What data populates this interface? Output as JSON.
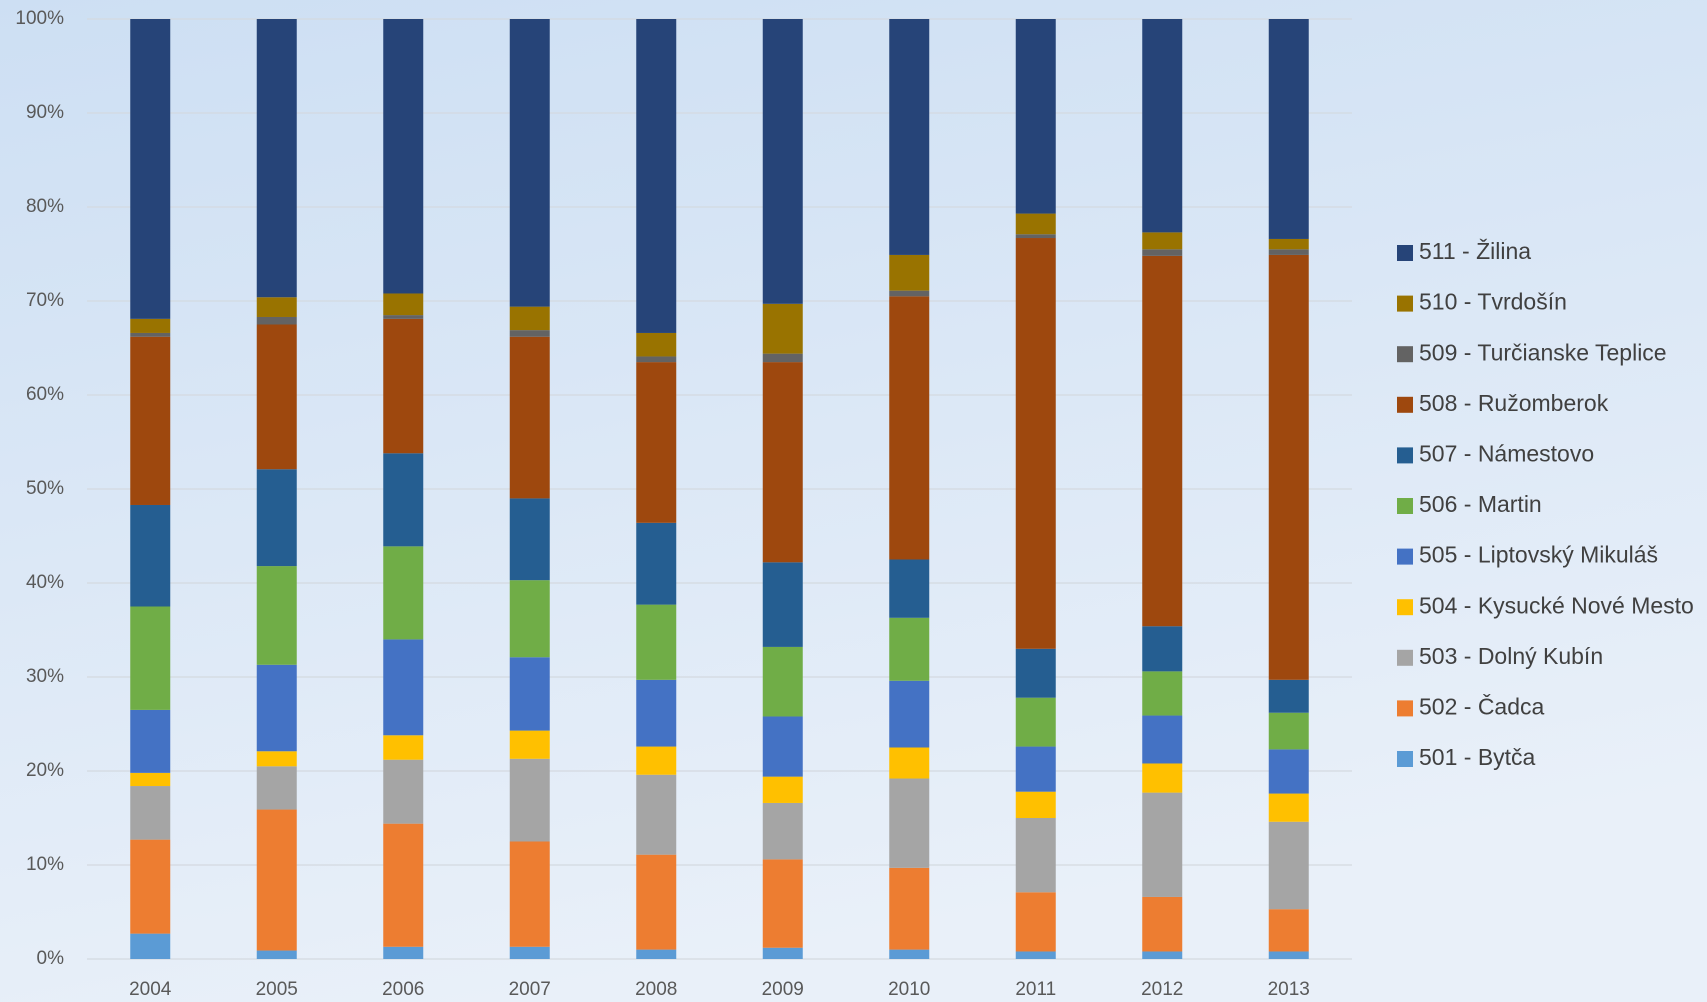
{
  "chart_data": {
    "type": "bar",
    "stacked": true,
    "categories": [
      "2004",
      "2005",
      "2006",
      "2007",
      "2008",
      "2009",
      "2010",
      "2011",
      "2012",
      "2013"
    ],
    "series": [
      {
        "name": "501 - Bytča",
        "color": "#5b9bd5",
        "values": [
          2.7,
          0.9,
          1.3,
          1.3,
          1.0,
          1.2,
          1.0,
          0.8,
          0.8,
          0.8
        ]
      },
      {
        "name": "502 - Čadca",
        "color": "#ed7d31",
        "values": [
          10.0,
          15.0,
          13.1,
          11.2,
          10.1,
          9.4,
          8.7,
          6.3,
          5.8,
          4.5
        ]
      },
      {
        "name": "503 - Dolný Kubín",
        "color": "#a5a5a5",
        "values": [
          5.7,
          4.6,
          6.8,
          8.8,
          8.5,
          6.0,
          9.5,
          7.9,
          11.1,
          9.3
        ]
      },
      {
        "name": "504 - Kysucké Nové Mesto",
        "color": "#ffc000",
        "values": [
          1.4,
          1.6,
          2.6,
          3.0,
          3.0,
          2.8,
          3.3,
          2.8,
          3.1,
          3.0
        ]
      },
      {
        "name": "505 - Liptovský Mikuláš",
        "color": "#4472c4",
        "values": [
          6.7,
          9.2,
          10.2,
          7.8,
          7.1,
          6.4,
          7.1,
          4.8,
          5.1,
          4.7
        ]
      },
      {
        "name": "506 - Martin",
        "color": "#70ad47",
        "values": [
          11.0,
          10.5,
          9.9,
          8.2,
          8.0,
          7.4,
          6.7,
          5.2,
          4.7,
          3.9
        ]
      },
      {
        "name": "507 - Námestovo",
        "color": "#255e91",
        "values": [
          10.8,
          10.3,
          9.9,
          8.7,
          8.7,
          9.0,
          6.2,
          5.2,
          4.8,
          3.5
        ]
      },
      {
        "name": "508 - Ružomberok",
        "color": "#9e480e",
        "values": [
          17.9,
          15.4,
          14.3,
          17.2,
          17.1,
          21.3,
          28.0,
          43.7,
          39.4,
          45.2
        ]
      },
      {
        "name": "509 - Turčianske Teplice",
        "color": "#636363",
        "values": [
          0.4,
          0.8,
          0.4,
          0.7,
          0.6,
          0.9,
          0.6,
          0.4,
          0.7,
          0.6
        ]
      },
      {
        "name": "510 - Tvrdošín",
        "color": "#997300",
        "values": [
          1.5,
          2.1,
          2.3,
          2.5,
          2.5,
          5.3,
          3.8,
          2.2,
          1.8,
          1.1
        ]
      },
      {
        "name": "511 - Žilina",
        "color": "#264478",
        "values": [
          31.9,
          29.6,
          29.2,
          30.6,
          33.4,
          30.3,
          25.1,
          20.7,
          22.7,
          23.4
        ]
      }
    ],
    "ylim": [
      0,
      100
    ],
    "yticks": [
      {
        "value": 0,
        "label": "0%"
      },
      {
        "value": 10,
        "label": "10%"
      },
      {
        "value": 20,
        "label": "20%"
      },
      {
        "value": 30,
        "label": "30%"
      },
      {
        "value": 40,
        "label": "40%"
      },
      {
        "value": 50,
        "label": "50%"
      },
      {
        "value": 60,
        "label": "60%"
      },
      {
        "value": 70,
        "label": "70%"
      },
      {
        "value": 80,
        "label": "80%"
      },
      {
        "value": 90,
        "label": "90%"
      },
      {
        "value": 100,
        "label": "100%"
      }
    ],
    "grid": true,
    "legend": "right"
  }
}
